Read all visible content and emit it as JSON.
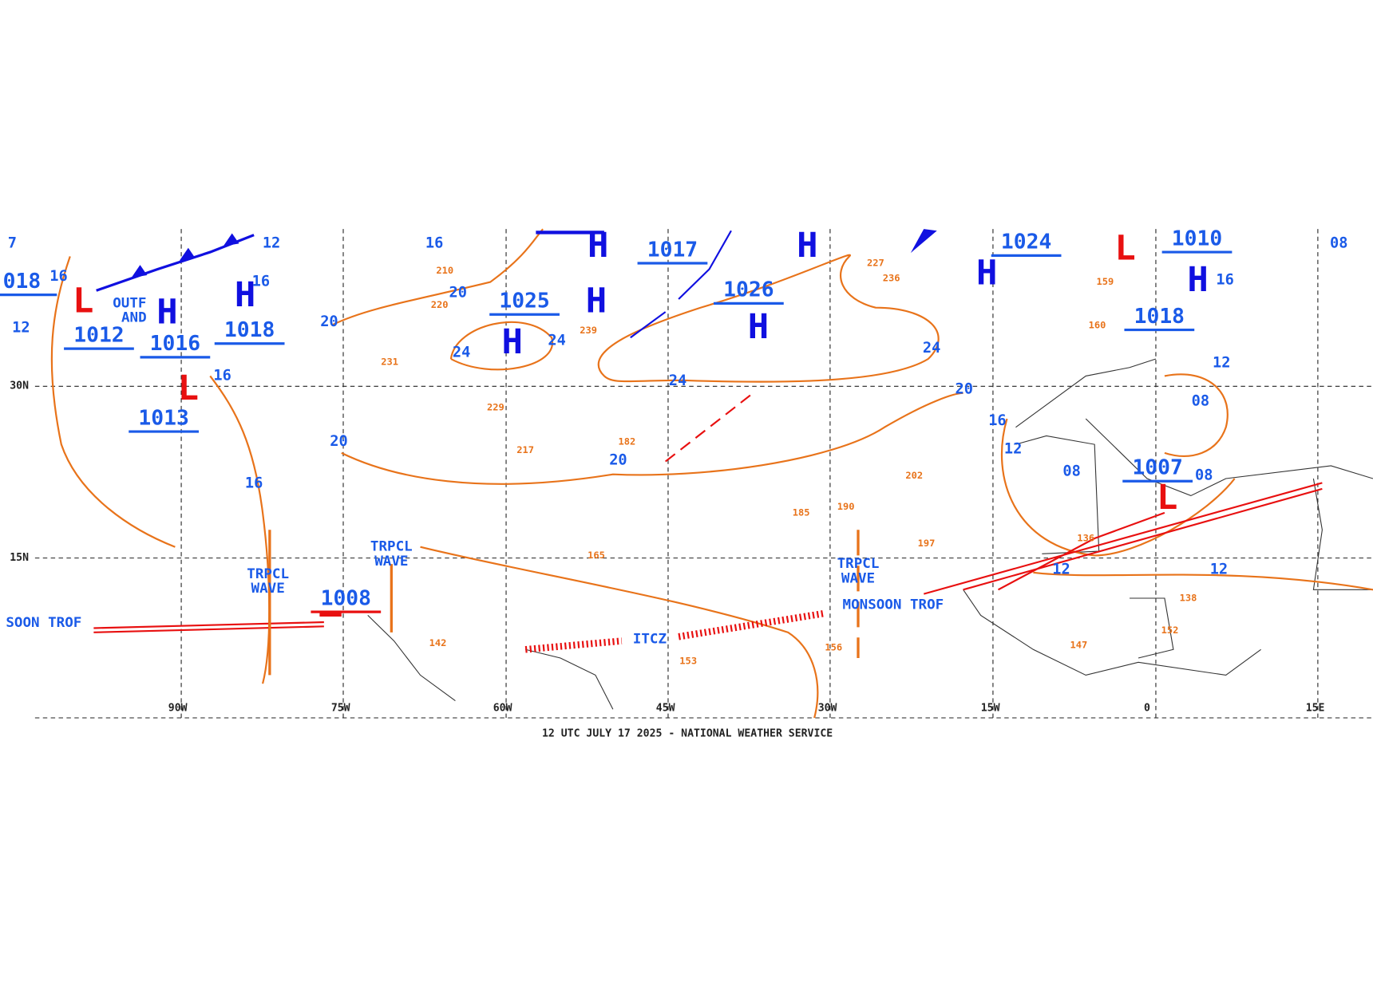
{
  "map": {
    "highs": [
      "H",
      "H",
      "H",
      "H",
      "H",
      "H",
      "H",
      "H",
      "H"
    ],
    "lows": [
      "L",
      "L",
      "L",
      "L"
    ],
    "pressures": [
      "1017",
      "1025",
      "1026",
      "1024",
      "1010",
      "1018",
      "1007",
      "1012",
      "1016",
      "1018",
      "1013",
      "1008",
      "018"
    ],
    "isobar_labels": [
      "24",
      "24",
      "24",
      "24",
      "20",
      "20",
      "20",
      "20",
      "20",
      "16",
      "16",
      "16",
      "16",
      "16",
      "16",
      "16",
      "12",
      "12",
      "12",
      "12",
      "12",
      "12",
      "08",
      "08",
      "08",
      "08",
      "7"
    ],
    "features": [
      "TRPCL",
      "WAVE",
      "TRPCL",
      "WAVE",
      "TRPCL",
      "WAVE",
      "MONSOON TROF",
      "SOON TROF",
      "ITCZ",
      "OUTF",
      "AND"
    ],
    "stations": [
      "227",
      "236",
      "239",
      "210",
      "220",
      "231",
      "229",
      "217",
      "182",
      "202",
      "197",
      "190",
      "185",
      "165",
      "153",
      "156",
      "142",
      "159",
      "160",
      "147",
      "152",
      "136",
      "138"
    ],
    "longitudes": [
      "90W",
      "75W",
      "60W",
      "45W",
      "30W",
      "15W",
      "0",
      "15E"
    ],
    "latitudes": [
      "30N",
      "15N"
    ]
  },
  "footer": "12 UTC JULY 17 2025 - NATIONAL WEATHER SERVICE"
}
